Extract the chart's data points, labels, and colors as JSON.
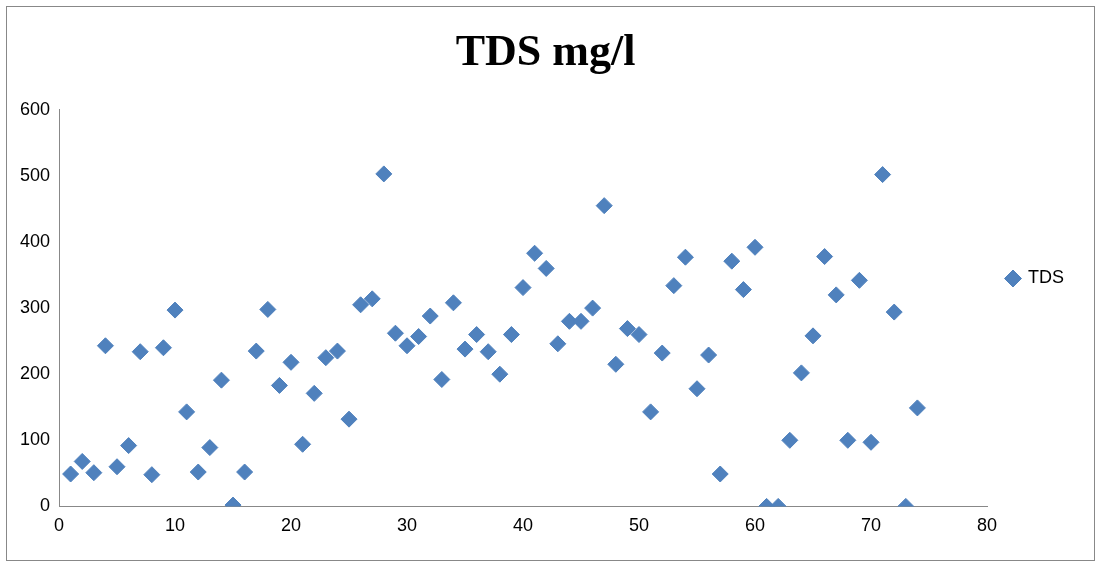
{
  "chart_data": {
    "type": "scatter",
    "title": "TDS mg/l",
    "x": [
      1,
      2,
      3,
      4,
      5,
      6,
      7,
      8,
      9,
      10,
      11,
      12,
      13,
      14,
      15,
      16,
      17,
      18,
      19,
      20,
      21,
      22,
      23,
      24,
      25,
      26,
      27,
      28,
      29,
      30,
      31,
      32,
      33,
      34,
      35,
      36,
      37,
      38,
      39,
      40,
      41,
      42,
      43,
      44,
      45,
      46,
      47,
      48,
      49,
      50,
      51,
      52,
      53,
      54,
      55,
      56,
      57,
      58,
      59,
      60,
      61,
      62,
      63,
      64,
      65,
      66,
      67,
      68,
      69,
      70,
      71,
      72,
      73,
      74
    ],
    "series": [
      {
        "name": "TDS",
        "color": "#4f81bd",
        "values": [
          49,
          68,
          51,
          243,
          60,
          92,
          234,
          48,
          240,
          297,
          143,
          52,
          89,
          191,
          2,
          52,
          235,
          298,
          183,
          218,
          94,
          171,
          225,
          235,
          132,
          305,
          314,
          503,
          262,
          243,
          257,
          288,
          192,
          308,
          238,
          260,
          234,
          200,
          260,
          331,
          383,
          360,
          246,
          280,
          280,
          300,
          455,
          215,
          269,
          260,
          143,
          232,
          334,
          377,
          178,
          229,
          49,
          371,
          328,
          392,
          0,
          0,
          100,
          202,
          258,
          378,
          320,
          100,
          342,
          97,
          502,
          294,
          0,
          149
        ]
      }
    ],
    "xlim": [
      0,
      80
    ],
    "xticks": [
      0,
      10,
      20,
      30,
      40,
      50,
      60,
      70,
      80
    ],
    "ylim": [
      0,
      600
    ],
    "yticks": [
      0,
      100,
      200,
      300,
      400,
      500,
      600
    ],
    "grid": false,
    "legend": "right",
    "marker": "diamond"
  }
}
